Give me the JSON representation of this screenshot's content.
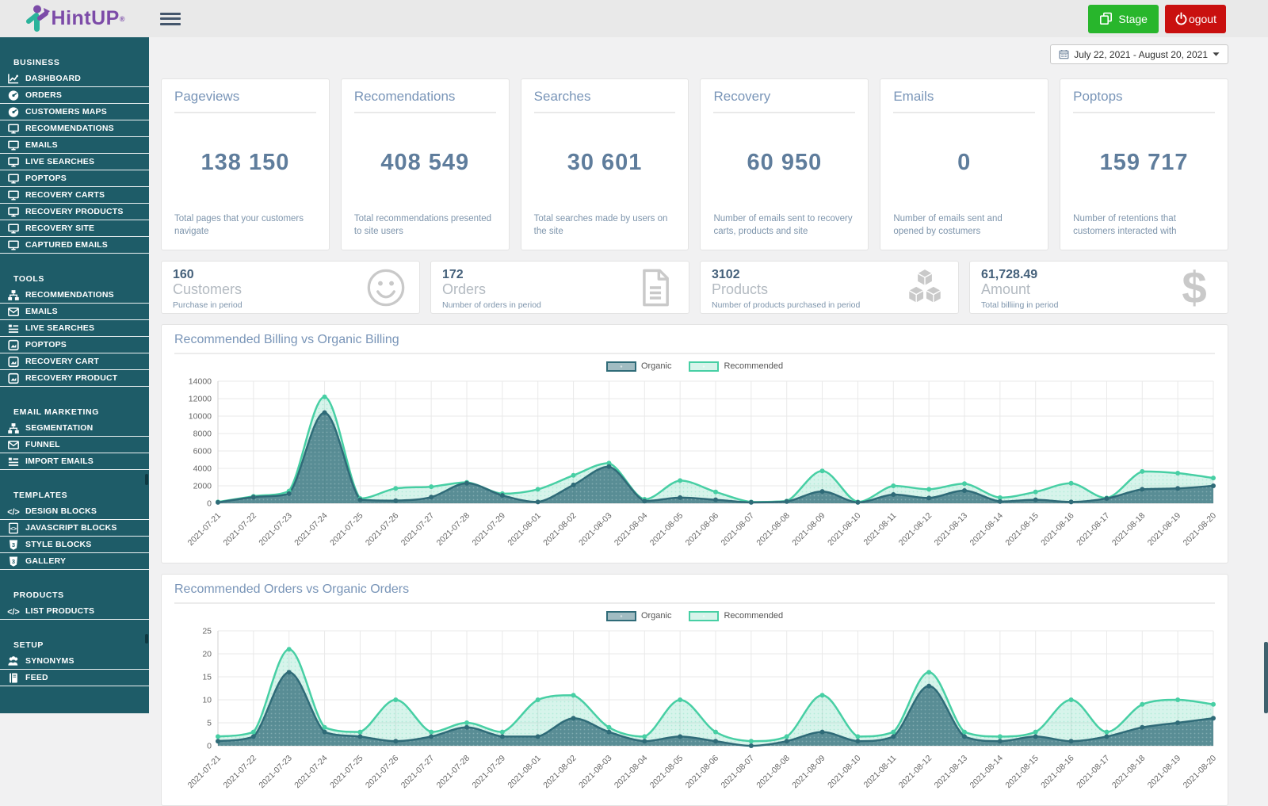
{
  "header": {
    "logo": {
      "text": "HintUP",
      "registered_mark": "®",
      "icon": "hintup-person-logo-icon"
    },
    "menu_toggle_icon": "hamburger-icon",
    "stage_button": {
      "label": "Stage",
      "icon": "copy-icon"
    },
    "logout_button": {
      "label": "ogout",
      "icon": "power-icon"
    }
  },
  "date_range_picker": {
    "icon": "calendar-icon",
    "label": "July 22, 2021 - August 20, 2021",
    "caret_icon": "caret-down-icon"
  },
  "sidebar": {
    "sections": [
      {
        "title": "BUSINESS",
        "items": [
          {
            "label": "DASHBOARD",
            "icon": "chart-line-icon"
          },
          {
            "label": "ORDERS",
            "icon": "speedometer-icon"
          },
          {
            "label": "CUSTOMERS MAPS",
            "icon": "speedometer-icon"
          },
          {
            "label": "RECOMMENDATIONS",
            "icon": "monitor-icon"
          },
          {
            "label": "EMAILS",
            "icon": "monitor-icon"
          },
          {
            "label": "LIVE SEARCHES",
            "icon": "monitor-icon"
          },
          {
            "label": "POPTOPS",
            "icon": "monitor-icon"
          },
          {
            "label": "RECOVERY CARTS",
            "icon": "monitor-icon"
          },
          {
            "label": "RECOVERY PRODUCTS",
            "icon": "monitor-icon"
          },
          {
            "label": "RECOVERY SITE",
            "icon": "monitor-icon"
          },
          {
            "label": "CAPTURED EMAILS",
            "icon": "monitor-icon"
          }
        ]
      },
      {
        "title": "TOOLS",
        "items": [
          {
            "label": "RECOMMENDATIONS",
            "icon": "sitemap-icon"
          },
          {
            "label": "EMAILS",
            "icon": "envelope-icon"
          },
          {
            "label": "LIVE SEARCHES",
            "icon": "list-icon"
          },
          {
            "label": "POPTOPS",
            "icon": "image-icon"
          },
          {
            "label": "RECOVERY CART",
            "icon": "image-icon"
          },
          {
            "label": "RECOVERY PRODUCT",
            "icon": "image-icon"
          }
        ]
      },
      {
        "title": "EMAIL MARKETING",
        "items": [
          {
            "label": "SEGMENTATION",
            "icon": "sitemap-icon"
          },
          {
            "label": "FUNNEL",
            "icon": "envelope-icon"
          },
          {
            "label": "IMPORT EMAILS",
            "icon": "list-icon"
          }
        ]
      },
      {
        "title": "TEMPLATES",
        "items": [
          {
            "label": "DESIGN BLOCKS",
            "icon": "code-icon"
          },
          {
            "label": "JAVASCRIPT BLOCKS",
            "icon": "file-code-icon"
          },
          {
            "label": "STYLE BLOCKS",
            "icon": "css-icon"
          },
          {
            "label": "GALLERY",
            "icon": "css-icon"
          }
        ]
      },
      {
        "title": "PRODUCTS",
        "items": [
          {
            "label": "LIST PRODUCTS",
            "icon": "code-icon"
          }
        ]
      },
      {
        "title": "SETUP",
        "items": [
          {
            "label": "SYNONYMS",
            "icon": "users-icon"
          },
          {
            "label": "FEED",
            "icon": "book-icon"
          }
        ]
      }
    ]
  },
  "stat_cards": [
    {
      "title": "Pageviews",
      "value": "138 150",
      "description": "Total pages that your customers navigate"
    },
    {
      "title": "Recomendations",
      "value": "408 549",
      "description": "Total recommendations presented to site users"
    },
    {
      "title": "Searches",
      "value": "30 601",
      "description": "Total searches made by users on the site"
    },
    {
      "title": "Recovery",
      "value": "60 950",
      "description": "Number of emails sent to recovery carts, products and site"
    },
    {
      "title": "Emails",
      "value": "0",
      "description": "Number of emails sent and opened by costumers"
    },
    {
      "title": "Poptops",
      "value": "159 717",
      "description": "Number of retentions that customers interacted with"
    }
  ],
  "summary_cards": [
    {
      "value": "160",
      "label": "Customers",
      "description": "Purchase in period",
      "icon": "smiley-icon"
    },
    {
      "value": "172",
      "label": "Orders",
      "description": "Number of orders in period",
      "icon": "document-icon"
    },
    {
      "value": "3102",
      "label": "Products",
      "description": "Number of products purchased in period",
      "icon": "cubes-icon"
    },
    {
      "value": "61,728.49",
      "label": "Amount",
      "description": "Total billiing in period",
      "icon": "dollar-icon"
    }
  ],
  "chart_data": [
    {
      "type": "area",
      "title": "Recommended Billing vs Organic Billing",
      "legend_position": "top-center",
      "grid": true,
      "ylim": [
        0,
        14000
      ],
      "ytick_step": 2000,
      "categories": [
        "2021-07-21",
        "2021-07-22",
        "2021-07-23",
        "2021-07-24",
        "2021-07-25",
        "2021-07-26",
        "2021-07-27",
        "2021-07-28",
        "2021-07-29",
        "2021-08-01",
        "2021-08-02",
        "2021-08-03",
        "2021-08-04",
        "2021-08-05",
        "2021-08-06",
        "2021-08-07",
        "2021-08-08",
        "2021-08-09",
        "2021-08-10",
        "2021-08-11",
        "2021-08-12",
        "2021-08-13",
        "2021-08-14",
        "2021-08-15",
        "2021-08-16",
        "2021-08-17",
        "2021-08-18",
        "2021-08-19",
        "2021-08-20"
      ],
      "series": [
        {
          "name": "Organic",
          "color": "#2f6b78",
          "fill": "rgba(47,107,120,0.75)",
          "values": [
            100,
            700,
            1100,
            10400,
            400,
            300,
            700,
            2300,
            900,
            150,
            2100,
            4200,
            250,
            650,
            400,
            100,
            200,
            1350,
            100,
            1000,
            600,
            1450,
            200,
            400,
            150,
            550,
            1600,
            1700,
            2000
          ]
        },
        {
          "name": "Recommended",
          "color": "#47cfa4",
          "fill": "rgba(71,207,164,0.22)",
          "values": [
            150,
            800,
            1400,
            12200,
            550,
            1700,
            1900,
            2400,
            1100,
            1600,
            3200,
            4600,
            450,
            2600,
            1300,
            150,
            250,
            3700,
            150,
            2000,
            1600,
            2250,
            650,
            1300,
            2300,
            600,
            3650,
            3450,
            2900
          ]
        }
      ]
    },
    {
      "type": "area",
      "title": "Recommended Orders vs Organic Orders",
      "legend_position": "top-center",
      "grid": true,
      "ylim": [
        0,
        25
      ],
      "ytick_step": 5,
      "categories": [
        "2021-07-21",
        "2021-07-22",
        "2021-07-23",
        "2021-07-24",
        "2021-07-25",
        "2021-07-26",
        "2021-07-27",
        "2021-07-28",
        "2021-07-29",
        "2021-08-01",
        "2021-08-02",
        "2021-08-03",
        "2021-08-04",
        "2021-08-05",
        "2021-08-06",
        "2021-08-07",
        "2021-08-08",
        "2021-08-09",
        "2021-08-10",
        "2021-08-11",
        "2021-08-12",
        "2021-08-13",
        "2021-08-14",
        "2021-08-15",
        "2021-08-16",
        "2021-08-17",
        "2021-08-18",
        "2021-08-19",
        "2021-08-20"
      ],
      "series": [
        {
          "name": "Organic",
          "color": "#2f6b78",
          "fill": "rgba(47,107,120,0.75)",
          "values": [
            1,
            2,
            16,
            3,
            2,
            1,
            2,
            4,
            2,
            2,
            6,
            3,
            1,
            2,
            1,
            0,
            1,
            3,
            1,
            2,
            13,
            2,
            1,
            2,
            1,
            2,
            4,
            5,
            6
          ]
        },
        {
          "name": "Recommended",
          "color": "#47cfa4",
          "fill": "rgba(71,207,164,0.22)",
          "values": [
            2,
            3,
            21,
            4,
            3,
            10,
            3,
            5,
            3,
            10,
            11,
            4,
            2,
            10,
            3,
            1,
            2,
            11,
            2,
            3,
            16,
            3,
            2,
            3,
            10,
            3,
            9,
            10,
            9
          ]
        }
      ]
    }
  ],
  "colors": {
    "sidebar_bg": "#1e5c68",
    "header_bg": "#e9e9e9",
    "stage_green": "#28b62c",
    "logout_red": "#c9100f",
    "brand_purple": "#7c4ba8",
    "brand_teal": "#2bb39b",
    "organic": "#2f6b78",
    "recommended": "#47cfa4",
    "card_title": "#7995b8",
    "card_number": "#5f7d9c",
    "muted_text": "#7e95ac"
  }
}
